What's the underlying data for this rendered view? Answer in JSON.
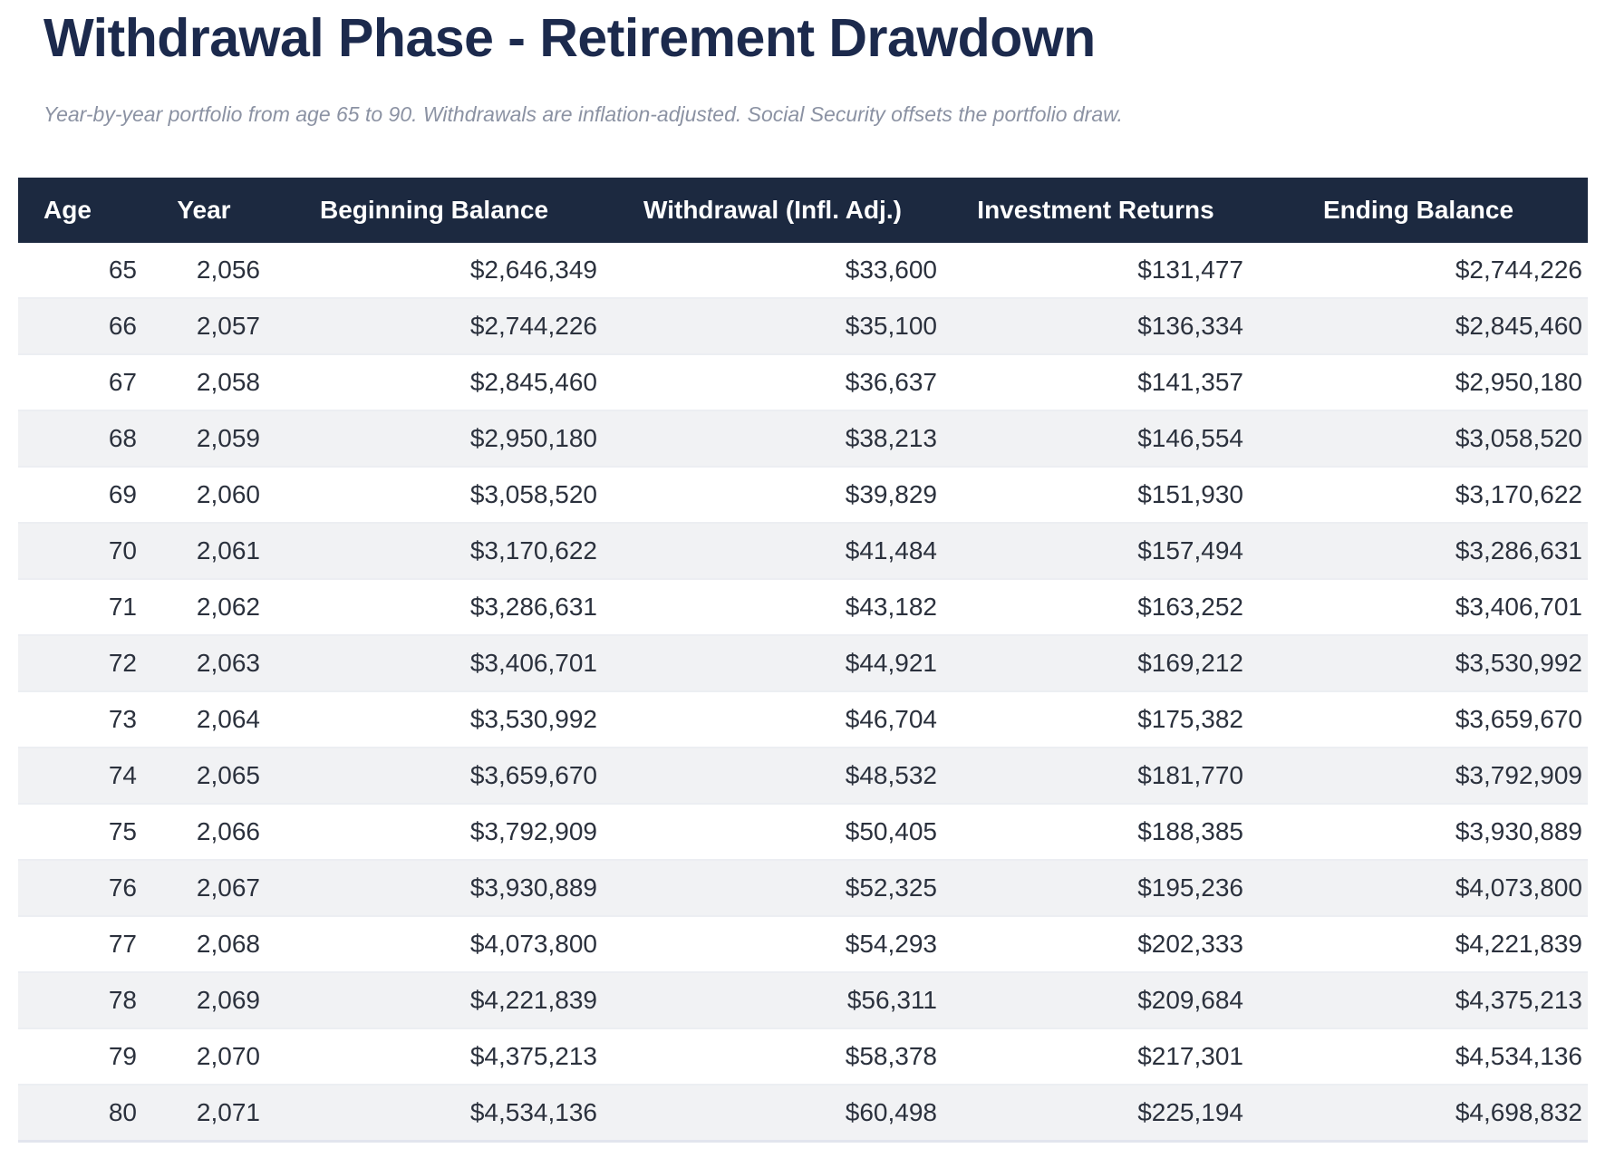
{
  "page": {
    "title": "Withdrawal Phase - Retirement Drawdown",
    "subtitle": "Year-by-year portfolio from age 65 to 90. Withdrawals are inflation-adjusted. Social Security offsets the portfolio draw."
  },
  "colors": {
    "header_bg": "#1c2940",
    "title_text": "#1c2a4d",
    "subtitle_text": "#8b92a3",
    "cell_text": "#2b313d",
    "stripe_bg": "#f1f2f4",
    "row_border": "#eceef2"
  },
  "table": {
    "columns": [
      {
        "key": "age",
        "label": "Age"
      },
      {
        "key": "year",
        "label": "Year"
      },
      {
        "key": "beginning-balance",
        "label": "Beginning Balance"
      },
      {
        "key": "withdrawal",
        "label": "Withdrawal (Infl. Adj.)"
      },
      {
        "key": "investment-returns",
        "label": "Investment Returns"
      },
      {
        "key": "ending-balance",
        "label": "Ending Balance"
      }
    ],
    "rows": [
      [
        "65",
        "2,056",
        "$2,646,349",
        "$33,600",
        "$131,477",
        "$2,744,226"
      ],
      [
        "66",
        "2,057",
        "$2,744,226",
        "$35,100",
        "$136,334",
        "$2,845,460"
      ],
      [
        "67",
        "2,058",
        "$2,845,460",
        "$36,637",
        "$141,357",
        "$2,950,180"
      ],
      [
        "68",
        "2,059",
        "$2,950,180",
        "$38,213",
        "$146,554",
        "$3,058,520"
      ],
      [
        "69",
        "2,060",
        "$3,058,520",
        "$39,829",
        "$151,930",
        "$3,170,622"
      ],
      [
        "70",
        "2,061",
        "$3,170,622",
        "$41,484",
        "$157,494",
        "$3,286,631"
      ],
      [
        "71",
        "2,062",
        "$3,286,631",
        "$43,182",
        "$163,252",
        "$3,406,701"
      ],
      [
        "72",
        "2,063",
        "$3,406,701",
        "$44,921",
        "$169,212",
        "$3,530,992"
      ],
      [
        "73",
        "2,064",
        "$3,530,992",
        "$46,704",
        "$175,382",
        "$3,659,670"
      ],
      [
        "74",
        "2,065",
        "$3,659,670",
        "$48,532",
        "$181,770",
        "$3,792,909"
      ],
      [
        "75",
        "2,066",
        "$3,792,909",
        "$50,405",
        "$188,385",
        "$3,930,889"
      ],
      [
        "76",
        "2,067",
        "$3,930,889",
        "$52,325",
        "$195,236",
        "$4,073,800"
      ],
      [
        "77",
        "2,068",
        "$4,073,800",
        "$54,293",
        "$202,333",
        "$4,221,839"
      ],
      [
        "78",
        "2,069",
        "$4,221,839",
        "$56,311",
        "$209,684",
        "$4,375,213"
      ],
      [
        "79",
        "2,070",
        "$4,375,213",
        "$58,378",
        "$217,301",
        "$4,534,136"
      ],
      [
        "80",
        "2,071",
        "$4,534,136",
        "$60,498",
        "$225,194",
        "$4,698,832"
      ]
    ]
  }
}
